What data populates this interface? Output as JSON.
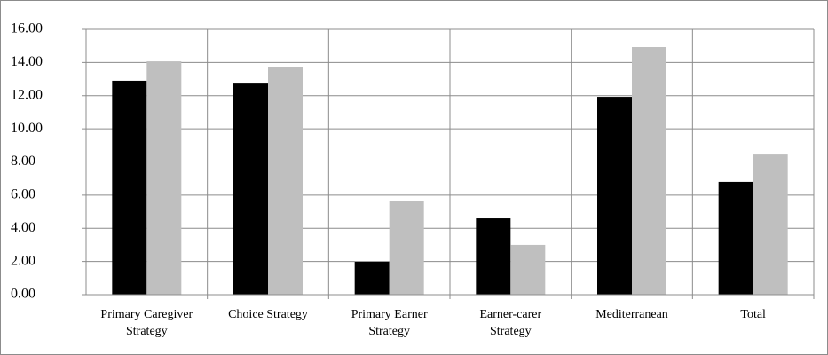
{
  "chart_data": {
    "type": "bar",
    "categories": [
      "Primary Caregiver\nStrategy",
      "Choice Strategy",
      "Primary Earner\nStrategy",
      "Earner-carer\nStrategy",
      "Mediterranean",
      "Total"
    ],
    "series": [
      {
        "color": "#000000",
        "values": [
          12.9,
          12.73,
          1.98,
          4.6,
          11.93,
          6.8
        ]
      },
      {
        "color": "#bfbfbf",
        "values": [
          14.07,
          13.75,
          5.62,
          3.0,
          14.93,
          8.45
        ]
      }
    ],
    "ylim": [
      0,
      16
    ],
    "yticks": [
      {
        "value": 0,
        "label": "0.00"
      },
      {
        "value": 2,
        "label": "2.00"
      },
      {
        "value": 4,
        "label": "4.00"
      },
      {
        "value": 6,
        "label": "6.00"
      },
      {
        "value": 8,
        "label": "8.00"
      },
      {
        "value": 10,
        "label": "10.00"
      },
      {
        "value": 12,
        "label": "12.00"
      },
      {
        "value": 14,
        "label": "14.00"
      },
      {
        "value": 16,
        "label": "16.00"
      }
    ],
    "grid": true
  }
}
